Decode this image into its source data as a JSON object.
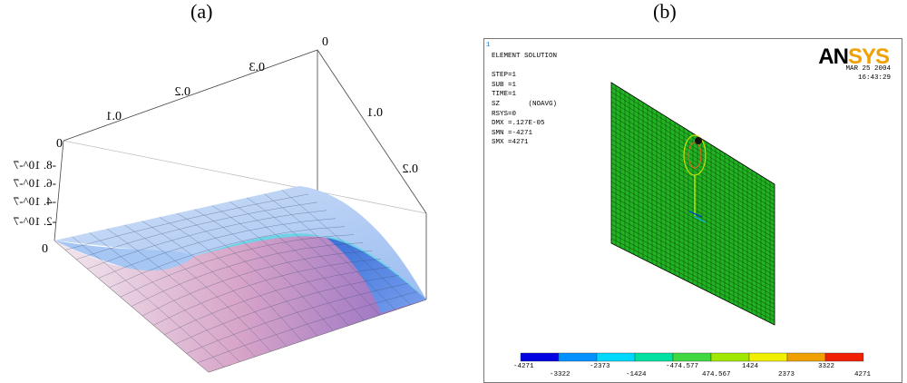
{
  "captions": {
    "a": "(a)",
    "b": "(b)"
  },
  "panel_a": {
    "top_axis_ticks": [
      "0",
      "0.3",
      "0.2",
      "0.1",
      "0"
    ],
    "right_axis_ticks": [
      "0",
      "0.1",
      "0.2"
    ],
    "z_axis_ticks": [
      "-8. 10^-7",
      "-6. 10^-7",
      "-4. 10^-7",
      "-2. 10^-7"
    ],
    "left_zero_labels": [
      "0",
      "0"
    ],
    "surface_colors": {
      "top": "#a9c8f2",
      "peak": "#5fd8e8",
      "bottom": "#b87cc6",
      "front": "#f0e2e8"
    }
  },
  "panel_b": {
    "window_number": "1",
    "info_lines": [
      "ELEMENT SOLUTION",
      "",
      "STEP=1",
      "SUB =1",
      "TIME=1",
      "SZ       (NOAVG)",
      "RSYS=0",
      "DMX =.127E-05",
      "SMN =-4271",
      "SMX =4271"
    ],
    "logo": {
      "an": "AN",
      "sys": "SYS"
    },
    "date": "MAR 25 2004",
    "time": "16:43:29",
    "mesh_color": "#22b322",
    "legend": {
      "colors": [
        "#0000e0",
        "#0090ff",
        "#00d8ff",
        "#00e0a0",
        "#40d840",
        "#a0e800",
        "#f0f000",
        "#f0a000",
        "#f02000"
      ],
      "labels_top": [
        "-4271",
        "-2373",
        "-474.577",
        "1424",
        "3322"
      ],
      "labels_bottom": [
        "-3322",
        "-1424",
        "474.567",
        "2373",
        "4271"
      ]
    }
  }
}
